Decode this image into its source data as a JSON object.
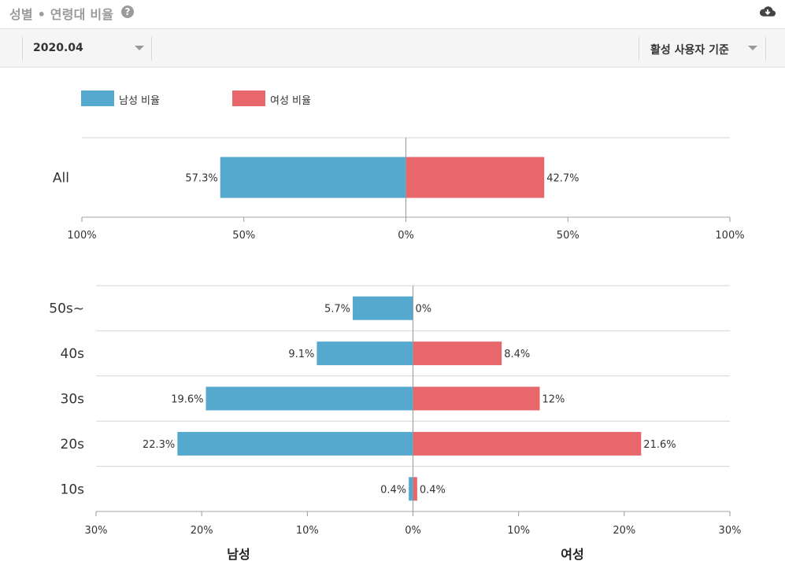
{
  "header": {
    "title": "성별 • 연령대 비율",
    "help_icon": "question-circle-icon",
    "download_icon": "cloud-download-icon"
  },
  "toolbar": {
    "date_value": "2020.04",
    "basis_value": "활성 사용자 기준"
  },
  "legend": [
    {
      "label": "남성 비율",
      "color": "#55a9ce"
    },
    {
      "label": "여성 비율",
      "color": "#e8676b"
    }
  ],
  "colors": {
    "male": "#55a9ce",
    "female": "#e8676b"
  },
  "side_labels": {
    "left": "남성",
    "right": "여성"
  },
  "chart_data": [
    {
      "type": "bar",
      "orientation": "horizontal-diverging",
      "categories": [
        "All"
      ],
      "series": [
        {
          "name": "남성 비율",
          "values": [
            57.3
          ]
        },
        {
          "name": "여성 비율",
          "values": [
            42.7
          ]
        }
      ],
      "data_labels": {
        "male": [
          "57.3%"
        ],
        "female": [
          "42.7%"
        ]
      },
      "xlim": [
        -100,
        100
      ],
      "ticks": [
        "100%",
        "50%",
        "0%",
        "50%",
        "100%"
      ],
      "grid": true
    },
    {
      "type": "bar",
      "orientation": "horizontal-diverging",
      "categories": [
        "50s~",
        "40s",
        "30s",
        "20s",
        "10s"
      ],
      "series": [
        {
          "name": "남성 비율",
          "values": [
            5.7,
            9.1,
            19.6,
            22.3,
            0.4
          ]
        },
        {
          "name": "여성 비율",
          "values": [
            0,
            8.4,
            12,
            21.6,
            0.4
          ]
        }
      ],
      "data_labels": {
        "male": [
          "5.7%",
          "9.1%",
          "19.6%",
          "22.3%",
          "0.4%"
        ],
        "female": [
          "0%",
          "8.4%",
          "12%",
          "21.6%",
          "0.4%"
        ]
      },
      "xlim": [
        -30,
        30
      ],
      "ticks": [
        "30%",
        "20%",
        "10%",
        "0%",
        "10%",
        "20%",
        "30%"
      ],
      "grid": true
    }
  ]
}
